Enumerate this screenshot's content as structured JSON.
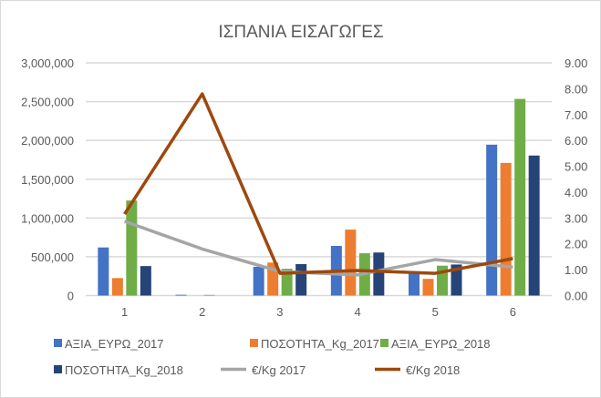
{
  "chart_data": {
    "type": "bar",
    "title": "ΙΣΠΑΝΙΑ ΕΙΣΑΓΩΓΕΣ",
    "categories": [
      "1",
      "2",
      "3",
      "4",
      "5",
      "6"
    ],
    "ylim": [
      0,
      3000000
    ],
    "y2lim": [
      0,
      9
    ],
    "yticks": [
      "0",
      "500,000",
      "1,000,000",
      "1,500,000",
      "2,000,000",
      "2,500,000",
      "3,000,000"
    ],
    "y2ticks": [
      "0.00",
      "1.00",
      "2.00",
      "3.00",
      "4.00",
      "5.00",
      "6.00",
      "7.00",
      "8.00",
      "9.00"
    ],
    "grid": true,
    "legend_position": "bottom",
    "series": [
      {
        "name": "ΑΞΙΑ_ΕΥΡΩ_2017",
        "kind": "bar",
        "axis": "left",
        "color": "#4472c4",
        "values": [
          620000,
          10000,
          370000,
          640000,
          310000,
          1945000
        ]
      },
      {
        "name": "ΠΟΣΟΤΗΤΑ_Kg_2017",
        "kind": "bar",
        "axis": "left",
        "color": "#ed7d31",
        "values": [
          225000,
          0,
          425000,
          850000,
          215000,
          1710000
        ]
      },
      {
        "name": "ΑΞΙΑ_ΕΥΡΩ_2018",
        "kind": "bar",
        "axis": "left",
        "color": "#70ad47",
        "values": [
          1225000,
          8000,
          345000,
          545000,
          385000,
          2535000
        ]
      },
      {
        "name": "ΠΟΣΟΤΗΤΑ_Kg_2018",
        "kind": "bar",
        "axis": "left",
        "color": "#264478",
        "values": [
          380000,
          0,
          405000,
          555000,
          400000,
          1805000
        ]
      },
      {
        "name": "€/Kg 2017",
        "kind": "line",
        "axis": "right",
        "color": "#a5a5a5",
        "values": [
          2.87,
          1.8,
          0.93,
          0.8,
          1.39,
          1.1
        ]
      },
      {
        "name": "€/Kg 2018",
        "kind": "line",
        "axis": "right",
        "color": "#9e480e",
        "values": [
          3.15,
          7.8,
          0.86,
          0.97,
          0.86,
          1.43
        ]
      }
    ]
  }
}
